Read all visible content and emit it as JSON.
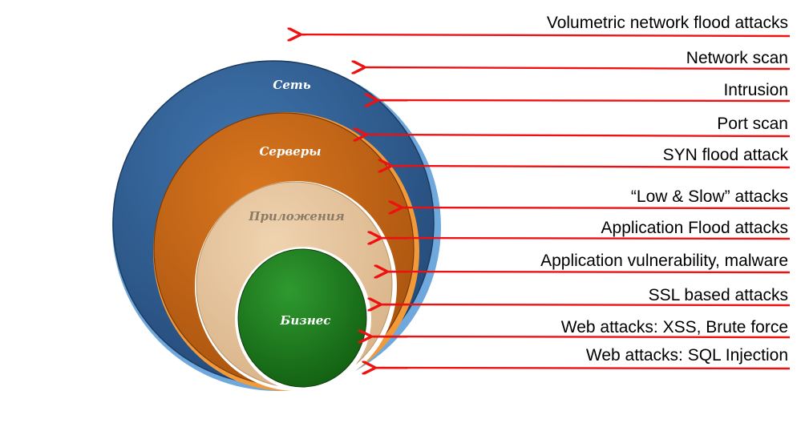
{
  "colors": {
    "network_ring": "#2f5b8f",
    "network_rim": "#6fa8dc",
    "servers_ring": "#c5661a",
    "servers_rim": "#f29a3a",
    "applications_ring": "#e6c29a",
    "business_ring": "#1f7a1f",
    "arrow": "#ee1111",
    "label_light": "#ffffff",
    "label_dark": "#8a7a66"
  },
  "layers": [
    {
      "label": "Сеть"
    },
    {
      "label": "Серверы"
    },
    {
      "label": "Приложения"
    },
    {
      "label": "Бизнес"
    }
  ],
  "attacks": [
    {
      "label": "Volumetric network flood attacks"
    },
    {
      "label": "Network scan"
    },
    {
      "label": "Intrusion"
    },
    {
      "label": "Port scan"
    },
    {
      "label": "SYN flood attack"
    },
    {
      "label": "“Low & Slow” attacks"
    },
    {
      "label": "Application Flood attacks"
    },
    {
      "label": "Application vulnerability, malware"
    },
    {
      "label": "SSL based attacks"
    },
    {
      "label": "Web attacks: XSS, Brute force"
    },
    {
      "label": "Web attacks: SQL Injection"
    }
  ]
}
